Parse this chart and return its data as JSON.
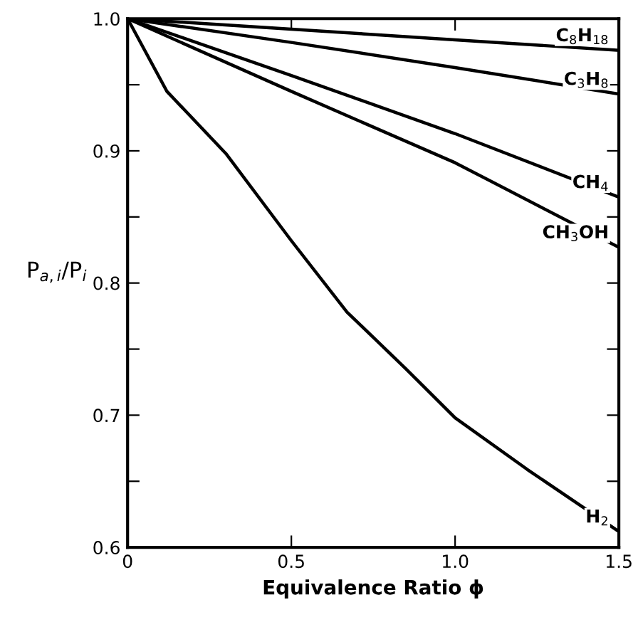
{
  "chart_data": {
    "type": "line",
    "xlabel": "Equivalence Ratio ϕ",
    "ylabel": "P$_{a,i}$/P$_{i}$",
    "xlim": [
      0,
      1.5
    ],
    "ylim": [
      0.6,
      1.0
    ],
    "xticks": [
      0,
      0.5,
      {
        "value": 1.0,
        "label": "1.0"
      },
      1.5
    ],
    "yticks": [
      0.6,
      {
        "value": 0.65,
        "label": null
      },
      0.7,
      {
        "value": 0.75,
        "label": null
      },
      0.8,
      {
        "value": 0.85,
        "label": null
      },
      0.9,
      {
        "value": 0.95,
        "label": null
      },
      {
        "value": 1.0,
        "label": "1.0"
      }
    ],
    "grid": false,
    "legend": "right",
    "marker": "none",
    "line_style": "solid",
    "series": [
      {
        "name": "C$_{8}$H$_{18}$",
        "color": "#000000",
        "x": [
          0,
          0.5,
          1.0,
          1.5
        ],
        "values": [
          1.0,
          0.992,
          0.984,
          0.976
        ]
      },
      {
        "name": "C$_{3}$H$_{8}$",
        "color": "#000000",
        "x": [
          0,
          0.5,
          1.0,
          1.5
        ],
        "values": [
          1.0,
          0.982,
          0.963,
          0.943
        ]
      },
      {
        "name": "CH$_{4}$",
        "color": "#000000",
        "x": [
          0,
          0.5,
          1.0,
          1.5
        ],
        "values": [
          1.0,
          0.957,
          0.913,
          0.865
        ]
      },
      {
        "name": "CH$_{3}$OH",
        "color": "#000000",
        "x": [
          0,
          0.5,
          1.0,
          1.5
        ],
        "values": [
          1.0,
          0.945,
          0.891,
          0.827
        ]
      },
      {
        "name": "H$_{2}$",
        "color": "#000000",
        "x": [
          0,
          0.12,
          0.3,
          0.5,
          0.67,
          0.85,
          1.0,
          1.22,
          1.5
        ],
        "values": [
          1.0,
          0.945,
          0.898,
          0.832,
          0.778,
          0.735,
          0.698,
          0.659,
          0.612
        ]
      }
    ]
  }
}
